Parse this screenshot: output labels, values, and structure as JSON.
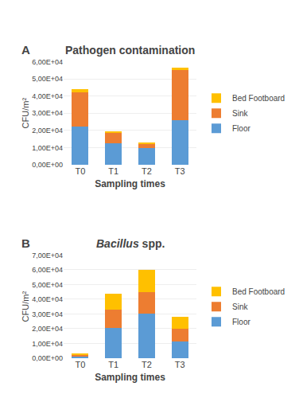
{
  "chart_data": [
    {
      "type": "bar",
      "stacked": true,
      "title": "Pathogen contamination",
      "annotations": [
        "A"
      ],
      "xlabel": "Sampling times",
      "ylabel": "CFU/m²",
      "categories": [
        "T0",
        "T1",
        "T2",
        "T3"
      ],
      "series": [
        {
          "name": "Floor",
          "color": "#5B9BD5",
          "values": [
            22000,
            12500,
            9500,
            26000
          ]
        },
        {
          "name": "Sink",
          "color": "#ED7D31",
          "values": [
            20000,
            6000,
            2500,
            29000
          ]
        },
        {
          "name": "Bed Footboard",
          "color": "#FFC000",
          "values": [
            2000,
            500,
            500,
            1500
          ]
        }
      ],
      "ylim": [
        0,
        60000
      ],
      "yticks": [
        {
          "value": 0,
          "label": "0,00E+00"
        },
        {
          "value": 10000,
          "label": "1,00E+04"
        },
        {
          "value": 20000,
          "label": "2,00E+04"
        },
        {
          "value": 30000,
          "label": "3,00E+04"
        },
        {
          "value": 40000,
          "label": "4,00E+04"
        },
        {
          "value": 50000,
          "label": "5,00E+04"
        },
        {
          "value": 60000,
          "label": "6,00E+04"
        }
      ],
      "grid": true,
      "legend": "right"
    },
    {
      "type": "bar",
      "stacked": true,
      "title": "Bacillus spp.",
      "annotations": [
        "B"
      ],
      "xlabel": "Sampling times",
      "ylabel": "CFU/m²",
      "categories": [
        "T0",
        "T1",
        "T2",
        "T3"
      ],
      "series": [
        {
          "name": "Floor",
          "color": "#5B9BD5",
          "values": [
            1000,
            20500,
            30000,
            11500
          ]
        },
        {
          "name": "Sink",
          "color": "#ED7D31",
          "values": [
            1000,
            12500,
            15000,
            8500
          ]
        },
        {
          "name": "Bed Footboard",
          "color": "#FFC000",
          "values": [
            500,
            11000,
            15000,
            8000
          ]
        }
      ],
      "ylim": [
        0,
        70000
      ],
      "yticks": [
        {
          "value": 0,
          "label": "0,00E+00"
        },
        {
          "value": 10000,
          "label": "1,00E+04"
        },
        {
          "value": 20000,
          "label": "2,00E+04"
        },
        {
          "value": 30000,
          "label": "3,00E+04"
        },
        {
          "value": 40000,
          "label": "4,00E+04"
        },
        {
          "value": 50000,
          "label": "5,00E+04"
        },
        {
          "value": 60000,
          "label": "6,00E+04"
        },
        {
          "value": 70000,
          "label": "7,00E+04"
        }
      ],
      "grid": true,
      "legend": "right"
    }
  ]
}
